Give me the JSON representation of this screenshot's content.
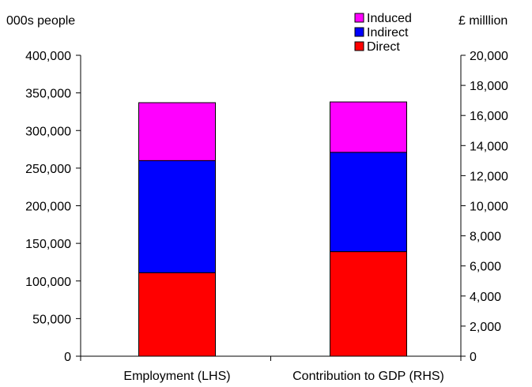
{
  "chart_data": {
    "type": "bar",
    "stacked": true,
    "categories": [
      "Employment (LHS)",
      "Contribution to GDP (RHS)"
    ],
    "bar_axis": [
      "left",
      "right"
    ],
    "series": [
      {
        "name": "Direct",
        "color": "#ff0000",
        "values": [
          111000,
          6950
        ]
      },
      {
        "name": "Indirect",
        "color": "#0000ff",
        "values": [
          149000,
          6600
        ]
      },
      {
        "name": "Induced",
        "color": "#ff00ff",
        "values": [
          77000,
          3350
        ]
      }
    ],
    "legend_order": [
      "Induced",
      "Indirect",
      "Direct"
    ],
    "legend_position": "top-right",
    "left_axis": {
      "unit_label": "000s people",
      "ylim": [
        0,
        400000
      ],
      "ticks": [
        0,
        50000,
        100000,
        150000,
        200000,
        250000,
        300000,
        350000,
        400000
      ],
      "tick_labels": [
        "0",
        "50,000",
        "100,000",
        "150,000",
        "200,000",
        "250,000",
        "300,000",
        "350,000",
        "400,000"
      ]
    },
    "right_axis": {
      "unit_label": "£ milllion",
      "ylim": [
        0,
        20000
      ],
      "ticks": [
        0,
        2000,
        4000,
        6000,
        8000,
        10000,
        12000,
        14000,
        16000,
        18000,
        20000
      ],
      "tick_labels": [
        "0",
        "2,000",
        "4,000",
        "6,000",
        "8,000",
        "10,000",
        "12,000",
        "14,000",
        "16,000",
        "18,000",
        "20,000"
      ]
    },
    "grid": false
  }
}
